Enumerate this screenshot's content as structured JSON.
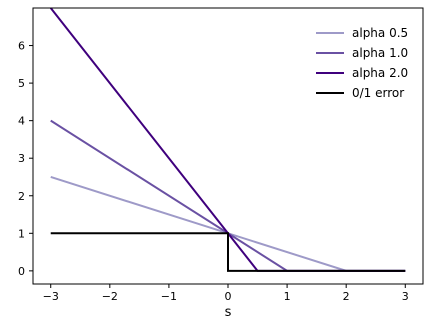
{
  "chart_data": {
    "type": "line",
    "xlabel": "s",
    "ylabel": "",
    "title": "",
    "xlim": [
      -3.3,
      3.3
    ],
    "ylim": [
      -0.35,
      7.0
    ],
    "xticks": [
      -3,
      -2,
      -1,
      0,
      1,
      2,
      3
    ],
    "xtick_labels": [
      "−3",
      "−2",
      "−1",
      "0",
      "1",
      "2",
      "3"
    ],
    "yticks": [
      0,
      1,
      2,
      3,
      4,
      5,
      6
    ],
    "ytick_labels": [
      "0",
      "1",
      "2",
      "3",
      "4",
      "5",
      "6"
    ],
    "grid": false,
    "legend_position": "top-right",
    "series": [
      {
        "name": "alpha 0.5",
        "color": "#9e9ac8",
        "x": [
          -3,
          2,
          3
        ],
        "y": [
          2.5,
          0,
          0
        ]
      },
      {
        "name": "alpha 1.0",
        "color": "#6a51a3",
        "x": [
          -3,
          1,
          3
        ],
        "y": [
          4,
          0,
          0
        ]
      },
      {
        "name": "alpha 2.0",
        "color": "#3f007d",
        "x": [
          -3,
          0.5,
          3
        ],
        "y": [
          7,
          0,
          0
        ]
      },
      {
        "name": "0/1 error",
        "color": "#000000",
        "x": [
          -3,
          0,
          0,
          3
        ],
        "y": [
          1,
          1,
          0,
          0
        ]
      }
    ]
  }
}
